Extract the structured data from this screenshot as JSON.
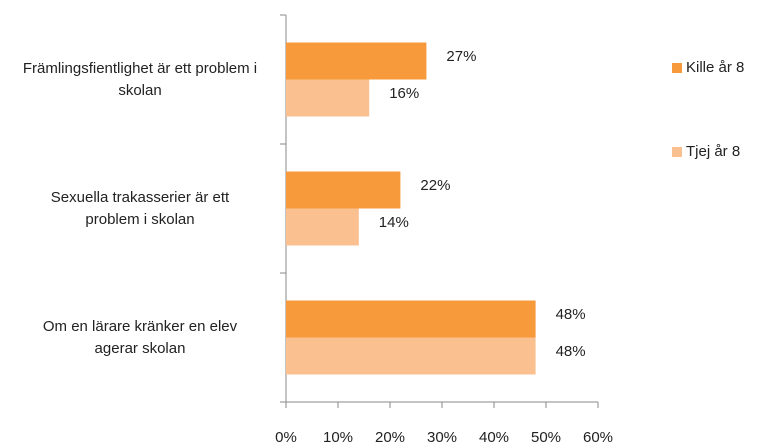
{
  "chart_data": {
    "type": "bar",
    "orientation": "horizontal",
    "categories": [
      "Främlingsfientlighet är ett problem i skolan",
      "Sexuella trakasserier är ett problem i skolan",
      "Om en lärare kränker en elev agerar skolan"
    ],
    "series": [
      {
        "name": "Kille år 8",
        "color": "#f79a3c",
        "values": [
          27,
          22,
          48
        ],
        "value_labels": [
          "27%",
          "22%",
          "48%"
        ]
      },
      {
        "name": "Tjej år 8",
        "color": "#fac08f",
        "values": [
          16,
          14,
          48
        ],
        "value_labels": [
          "16%",
          "14%",
          "48%"
        ]
      }
    ],
    "xlim": [
      0,
      60
    ],
    "xticks": [
      {
        "value": 0,
        "label": "0%"
      },
      {
        "value": 10,
        "label": "10%"
      },
      {
        "value": 20,
        "label": "20%"
      },
      {
        "value": 30,
        "label": "30%"
      },
      {
        "value": 40,
        "label": "40%"
      },
      {
        "value": 50,
        "label": "50%"
      },
      {
        "value": 60,
        "label": "60%"
      }
    ],
    "legend": "right",
    "grid": false
  }
}
